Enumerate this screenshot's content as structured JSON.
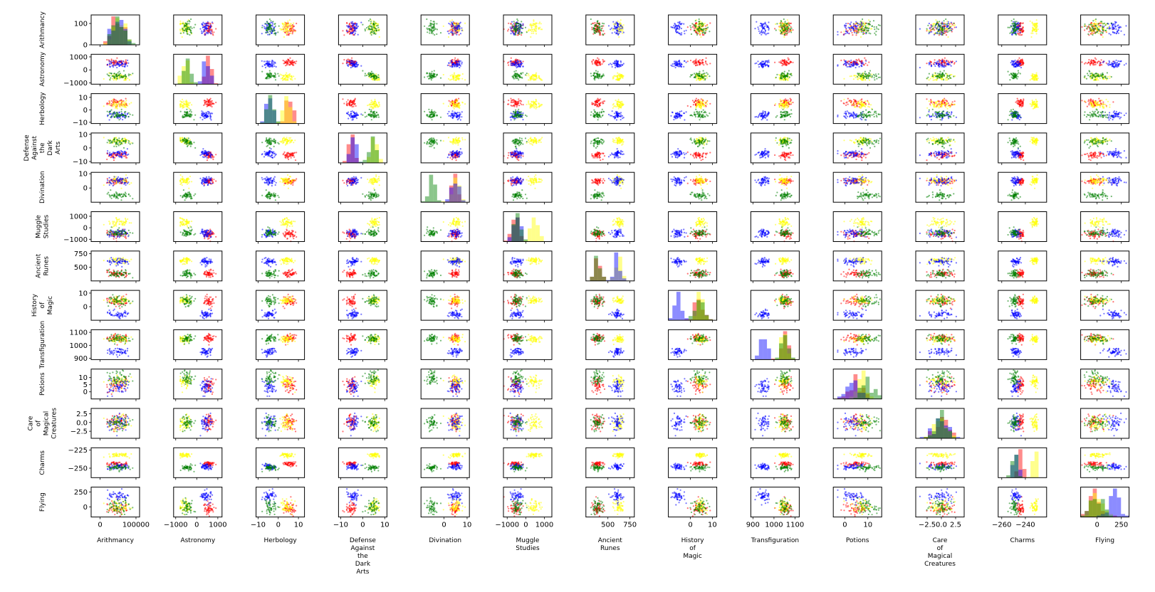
{
  "chart_data": {
    "type": "scatter",
    "title": "",
    "subtitle": "",
    "variables": [
      "Arithmancy",
      "Astronomy",
      "Herbology",
      "Defense Against the Dark Arts",
      "Divination",
      "Muggle Studies",
      "Ancient Runes",
      "History of Magic",
      "Transfiguration",
      "Potions",
      "Care of Magical Creatures",
      "Charms",
      "Flying"
    ],
    "diagonal_type": "histogram",
    "off_diagonal_type": "scatter",
    "series": [
      {
        "name": "",
        "color": "#ff0000"
      },
      {
        "name": "",
        "color": "#ffff00"
      },
      {
        "name": "",
        "color": "#0000ff"
      },
      {
        "name": "",
        "color": "#008000"
      }
    ],
    "clusters": {
      "Arithmancy": [
        [
          50000,
          15000
        ],
        [
          50000,
          15000
        ],
        [
          50000,
          15000
        ],
        [
          50000,
          15000
        ]
      ],
      "Astronomy": [
        [
          550,
          150
        ],
        [
          -550,
          130
        ],
        [
          420,
          150
        ],
        [
          -470,
          130
        ]
      ],
      "Herbology": [
        [
          5.5,
          1.6
        ],
        [
          4.5,
          1.6
        ],
        [
          -4.5,
          1.6
        ],
        [
          -4.0,
          1.6
        ]
      ],
      "Defense Against the Dark Arts": [
        [
          -5.5,
          1.5
        ],
        [
          5.5,
          1.3
        ],
        [
          -4.2,
          1.5
        ],
        [
          4.7,
          1.3
        ]
      ],
      "Divination": [
        [
          5.0,
          1.3
        ],
        [
          5.0,
          1.3
        ],
        [
          5.0,
          1.3
        ],
        [
          -5.5,
          1.4
        ]
      ],
      "Muggle Studies": [
        [
          -550,
          180
        ],
        [
          450,
          180
        ],
        [
          -450,
          180
        ],
        [
          -480,
          180
        ]
      ],
      "Ancient Runes": [
        [
          380,
          30
        ],
        [
          620,
          30
        ],
        [
          600,
          30
        ],
        [
          380,
          30
        ]
      ],
      "History of Magic": [
        [
          4.0,
          1.8
        ],
        [
          4.5,
          1.8
        ],
        [
          -5.5,
          1.6
        ],
        [
          4.0,
          1.8
        ]
      ],
      "Transfiguration": [
        [
          1055,
          15
        ],
        [
          1050,
          15
        ],
        [
          950,
          15
        ],
        [
          1055,
          15
        ]
      ],
      "Potions": [
        [
          5.0,
          2.5
        ],
        [
          7.0,
          2.5
        ],
        [
          4.0,
          2.5
        ],
        [
          10.0,
          2.5
        ]
      ],
      "Care of Magical Creatures": [
        [
          0.0,
          1.0
        ],
        [
          0.0,
          1.0
        ],
        [
          0.0,
          1.0
        ],
        [
          0.0,
          1.0
        ]
      ],
      "Charms": [
        [
          -244,
          2.0
        ],
        [
          -232,
          1.5
        ],
        [
          -248,
          2.0
        ],
        [
          -250,
          2.0
        ]
      ],
      "Flying": [
        [
          -30,
          60
        ],
        [
          -10,
          60
        ],
        [
          180,
          50
        ],
        [
          -20,
          60
        ]
      ]
    },
    "axis_ranges": {
      "Arithmancy": [
        -25000,
        110000
      ],
      "Astronomy": [
        -1100,
        1200
      ],
      "Herbology": [
        -11,
        13
      ],
      "Defense Against the Dark Arts": [
        -11,
        11
      ],
      "Divination": [
        -10,
        11
      ],
      "Muggle Studies": [
        -1200,
        1400
      ],
      "Ancient Runes": [
        250,
        800
      ],
      "History of Magic": [
        -10,
        12
      ],
      "Transfiguration": [
        890,
        1120
      ],
      "Potions": [
        -5,
        16
      ],
      "Care of Magical Creatures": [
        -4.5,
        4
      ],
      "Charms": [
        -263,
        -222
      ],
      "Flying": [
        -170,
        330
      ]
    },
    "x_tick_labels": {
      "Arithmancy": [
        "0",
        "100000"
      ],
      "Astronomy": [
        "−1000",
        "0",
        "1000"
      ],
      "Herbology": [
        "−10",
        "0",
        "10"
      ],
      "Defense Against the Dark Arts": [
        "−10",
        "0",
        "10"
      ],
      "Divination": [
        "0",
        "10"
      ],
      "Muggle Studies": [
        "−1000",
        "0",
        "1000"
      ],
      "Ancient Runes": [
        "500",
        "750"
      ],
      "History of Magic": [
        "0",
        "10"
      ],
      "Transfiguration": [
        "900",
        "1000",
        "1100"
      ],
      "Potions": [
        "0",
        "10"
      ],
      "Care of Magical Creatures": [
        "−2.5",
        "0.0",
        "2.5"
      ],
      "Charms": [
        "−260",
        "−240"
      ],
      "Flying": [
        "0",
        "250"
      ]
    },
    "x_ticks": {
      "Arithmancy": [
        0,
        100000
      ],
      "Astronomy": [
        -1000,
        0,
        1000
      ],
      "Herbology": [
        -10,
        0,
        10
      ],
      "Defense Against the Dark Arts": [
        -10,
        0,
        10
      ],
      "Divination": [
        0,
        10
      ],
      "Muggle Studies": [
        -1000,
        0,
        1000
      ],
      "Ancient Runes": [
        500,
        750
      ],
      "History of Magic": [
        0,
        10
      ],
      "Transfiguration": [
        900,
        1000,
        1100
      ],
      "Potions": [
        0,
        10
      ],
      "Care of Magical Creatures": [
        -2.5,
        0,
        2.5
      ],
      "Charms": [
        -260,
        -240
      ],
      "Flying": [
        0,
        250
      ]
    },
    "y_tick_labels": {
      "Arithmancy": [
        "0",
        "100"
      ],
      "Astronomy": [
        "−1000",
        "0",
        "1000"
      ],
      "Herbology": [
        "−10",
        "0",
        "10"
      ],
      "Defense Against the Dark Arts": [
        "−10",
        "0",
        "10"
      ],
      "Divination": [
        "0",
        "10"
      ],
      "Muggle Studies": [
        "−1000",
        "0",
        "1000"
      ],
      "Ancient Runes": [
        "500",
        "750"
      ],
      "History of Magic": [
        "0",
        "10"
      ],
      "Transfiguration": [
        "900",
        "1000",
        "1100"
      ],
      "Potions": [
        "0",
        "5",
        "10"
      ],
      "Care of Magical Creatures": [
        "−2.5",
        "0.0",
        "2.5"
      ],
      "Charms": [
        "−250",
        "−225"
      ],
      "Flying": [
        "0",
        "250"
      ]
    },
    "y_ticks": {
      "Arithmancy": [
        0,
        100
      ],
      "Astronomy": [
        -1000,
        0,
        1000
      ],
      "Herbology": [
        -10,
        0,
        10
      ],
      "Defense Against the Dark Arts": [
        -10,
        0,
        10
      ],
      "Divination": [
        0,
        10
      ],
      "Muggle Studies": [
        -1000,
        0,
        1000
      ],
      "Ancient Runes": [
        500,
        750
      ],
      "History of Magic": [
        0,
        10
      ],
      "Transfiguration": [
        900,
        1000,
        1100
      ],
      "Potions": [
        0,
        5,
        10
      ],
      "Care of Magical Creatures": [
        -2.5,
        0,
        2.5
      ],
      "Charms": [
        -250,
        -225
      ],
      "Flying": [
        0,
        250
      ]
    },
    "row_labels": [
      [
        "Arithmancy"
      ],
      [
        "Astronomy"
      ],
      [
        "Herbology"
      ],
      [
        "Defense",
        "Against",
        "the",
        "Dark",
        "Arts"
      ],
      [
        "Divination"
      ],
      [
        "Muggle",
        "Studies"
      ],
      [
        "Ancient",
        "Runes"
      ],
      [
        "History",
        "of",
        "Magic"
      ],
      [
        "Transfiguration"
      ],
      [
        "Potions"
      ],
      [
        "Care",
        "of",
        "Magical",
        "Creatures"
      ],
      [
        "Charms"
      ],
      [
        "Flying"
      ]
    ],
    "col_labels": [
      [
        "Arithmancy"
      ],
      [
        "Astronomy"
      ],
      [
        "Herbology"
      ],
      [
        "Defense",
        "Against",
        "the",
        "Dark",
        "Arts"
      ],
      [
        "Divination"
      ],
      [
        "Muggle",
        "Studies"
      ],
      [
        "Ancient",
        "Runes"
      ],
      [
        "History",
        "of",
        "Magic"
      ],
      [
        "Transfiguration"
      ],
      [
        "Potions"
      ],
      [
        "Care",
        "of",
        "Magical",
        "Creatures"
      ],
      [
        "Charms"
      ],
      [
        "Flying"
      ]
    ],
    "grid": false,
    "legend": "none"
  }
}
